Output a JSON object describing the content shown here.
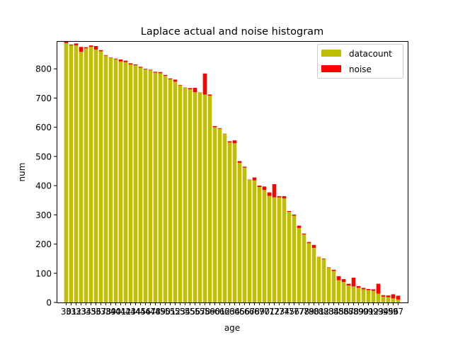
{
  "chart_data": {
    "type": "bar",
    "stacked": true,
    "title": "Laplace actual and noise histogram",
    "xlabel": "age",
    "ylabel": "num",
    "ylim": [
      0,
      895
    ],
    "yticks": [
      0,
      100,
      200,
      300,
      400,
      500,
      600,
      700,
      800
    ],
    "legend_position": "top-right",
    "grid": false,
    "categories": [
      "30",
      "31",
      "32",
      "33",
      "34",
      "35",
      "36",
      "37",
      "38",
      "39",
      "40",
      "41",
      "42",
      "43",
      "44",
      "45",
      "46",
      "47",
      "48",
      "49",
      "50",
      "51",
      "52",
      "53",
      "54",
      "55",
      "56",
      "57",
      "58",
      "59",
      "60",
      "61",
      "62",
      "63",
      "64",
      "65",
      "66",
      "67",
      "68",
      "69",
      "70",
      "71",
      "72",
      "73",
      "74",
      "75",
      "76",
      "77",
      "78",
      "79",
      "80",
      "81",
      "82",
      "83",
      "84",
      "85",
      "86",
      "87",
      "88",
      "89",
      "90",
      "91",
      "92",
      "93",
      "94",
      "95",
      "96",
      "97"
    ],
    "tick_labels": [
      "30",
      "31",
      "32",
      "33",
      "34",
      "35",
      "36",
      "37",
      "38",
      "39",
      "40",
      "41",
      "42",
      "43",
      "44",
      "45",
      "46",
      "47",
      "48",
      "49",
      "50",
      "51",
      "52",
      "53",
      "54",
      "55",
      "56",
      "57",
      "58",
      "59",
      "60",
      "61",
      "62",
      "63",
      "64",
      "65",
      "66",
      "67",
      "68",
      "69",
      "70",
      "71",
      "72",
      "73",
      "74",
      "75",
      "76",
      "77",
      "78",
      "79",
      "80",
      "81",
      "82",
      "83",
      "84",
      "85",
      "86",
      "87",
      "88",
      "89",
      "90",
      "91",
      "92",
      "93",
      "94",
      "95",
      "96",
      "97"
    ],
    "series": [
      {
        "name": "datacount",
        "color": "#bfbf00",
        "values": [
          888,
          880,
          880,
          858,
          870,
          875,
          866,
          860,
          845,
          838,
          833,
          825,
          823,
          815,
          812,
          804,
          798,
          795,
          787,
          785,
          776,
          764,
          756,
          743,
          735,
          730,
          720,
          718,
          712,
          708,
          600,
          595,
          577,
          548,
          545,
          478,
          462,
          420,
          418,
          395,
          385,
          365,
          360,
          360,
          356,
          310,
          297,
          255,
          233,
          203,
          187,
          155,
          148,
          118,
          108,
          76,
          70,
          58,
          55,
          50,
          45,
          42,
          40,
          30,
          20,
          18,
          14,
          10
        ]
      },
      {
        "name": "noise",
        "color": "#ff0000",
        "values": [
          5,
          3,
          7,
          17,
          4,
          5,
          12,
          4,
          2,
          1,
          2,
          7,
          5,
          4,
          3,
          3,
          2,
          2,
          3,
          4,
          3,
          3,
          7,
          2,
          1,
          4,
          15,
          1,
          72,
          4,
          4,
          2,
          1,
          4,
          10,
          6,
          3,
          1,
          10,
          5,
          12,
          12,
          45,
          4,
          8,
          3,
          4,
          8,
          3,
          4,
          10,
          1,
          2,
          2,
          4,
          14,
          10,
          6,
          30,
          6,
          5,
          4,
          5,
          34,
          5,
          6,
          14,
          13
        ]
      }
    ]
  }
}
